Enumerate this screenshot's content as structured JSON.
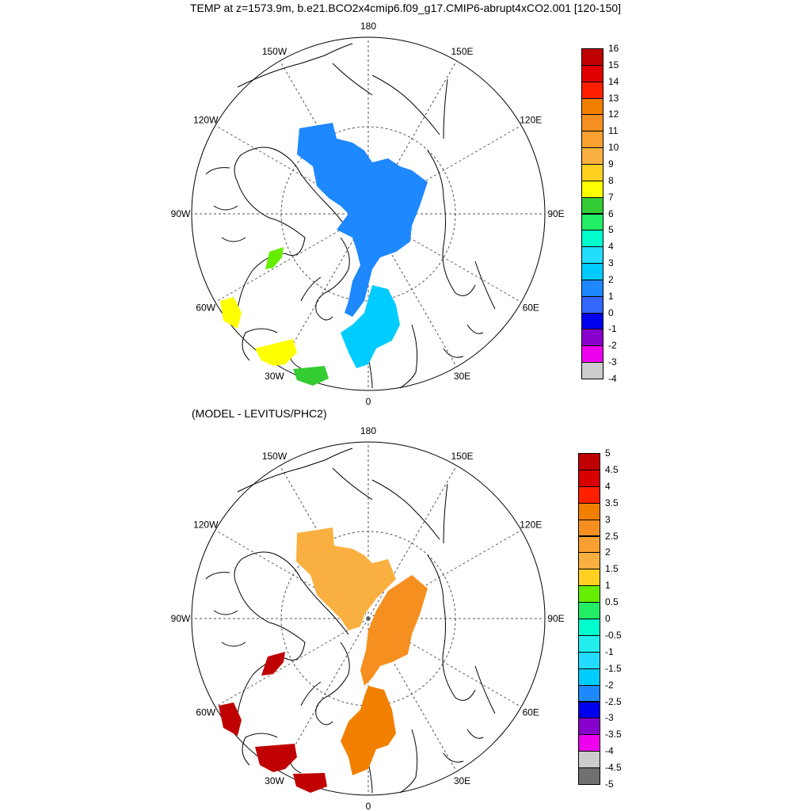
{
  "title": "TEMP at z=1573.9m, b.e21.BCO2x4cmip6.f09_g17.CMIP6-abrupt4xCO2.001 [120-150]",
  "subtitle": "(MODEL - LEVITUS/PHC2)",
  "lon_labels": [
    "180",
    "150E",
    "120E",
    "90E",
    "60E",
    "30E",
    "0",
    "30W",
    "60W",
    "90W",
    "120W",
    "150W"
  ],
  "colorbar_top": {
    "labels": [
      "16",
      "15",
      "14",
      "13",
      "12",
      "11",
      "10",
      "9",
      "8",
      "7",
      "6",
      "5",
      "4",
      "3",
      "2",
      "1",
      "0",
      "-1",
      "-2",
      "-3",
      "-4"
    ],
    "colors": [
      "#c00000",
      "#e00000",
      "#ff2000",
      "#f28000",
      "#f59020",
      "#f8a030",
      "#fab040",
      "#ffd020",
      "#ffff00",
      "#33cc33",
      "#22ee66",
      "#00ffcc",
      "#22ddff",
      "#00ccff",
      "#1e88ff",
      "#3366ff",
      "#0000ee",
      "#8800cc",
      "#ee00ee",
      "#cccccc",
      "#707070"
    ]
  },
  "colorbar_bottom": {
    "labels": [
      "5",
      "4.5",
      "4",
      "3.5",
      "3",
      "2.5",
      "2",
      "1.5",
      "1",
      "0.5",
      "0",
      "-0.5",
      "-1",
      "-1.5",
      "-2",
      "-2.5",
      "-3",
      "-3.5",
      "-4",
      "-4.5",
      "-5"
    ],
    "colors": [
      "#c00000",
      "#d80000",
      "#ff2000",
      "#f28000",
      "#f59020",
      "#f8a030",
      "#fab040",
      "#ffd020",
      "#66ee00",
      "#22ee66",
      "#00ffcc",
      "#22eeee",
      "#22ddff",
      "#00ccff",
      "#1e88ff",
      "#0000ee",
      "#8800cc",
      "#ee00ee",
      "#cccccc",
      "#707070",
      "#707070"
    ]
  },
  "map_top": {
    "arctic_color": "#1e88ff",
    "nordic_color": "#00ccff",
    "labrador_color": "#66ee00",
    "atlantic_color": "#ffff00",
    "atlantic_green": "#33cc33"
  },
  "map_bottom": {
    "arctic_color": "#fab040",
    "eurasian_color": "#f59020",
    "nordic_color": "#f28000",
    "atlantic_color": "#c00000",
    "pacific_color": "#33cc33"
  }
}
